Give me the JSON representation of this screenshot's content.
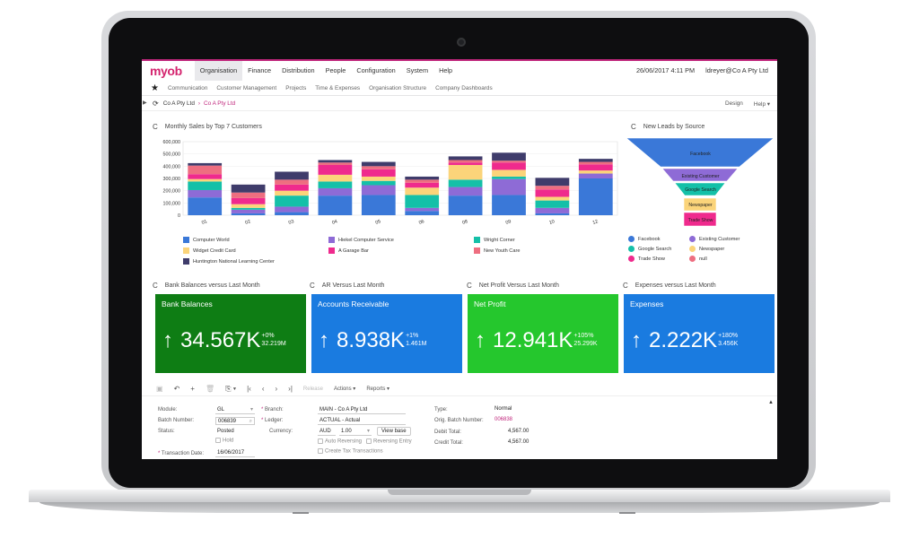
{
  "app": {
    "logo": "myob",
    "menu": [
      "Organisation",
      "Finance",
      "Distribution",
      "People",
      "Configuration",
      "System",
      "Help"
    ],
    "active_menu": "Organisation",
    "datetime": "26/06/2017 4:11 PM",
    "user": "ldreyer@Co A Pty Ltd"
  },
  "subnav": [
    "Communication",
    "Customer Management",
    "Projects",
    "Time & Expenses",
    "Organisation Structure",
    "Company Dashboards"
  ],
  "breadcrumb": {
    "root": "Co A Pty Ltd",
    "current": "Co A Pty Ltd"
  },
  "crumb_right": {
    "design": "Design",
    "help": "Help"
  },
  "widgets": {
    "monthly_sales": "Monthly Sales by Top 7 Customers",
    "leads": "New Leads by Source",
    "bank": "Bank Balances versus Last Month",
    "ar": "AR Versus Last Month",
    "profit": "Net Profit Versus Last Month",
    "expenses": "Expenses versus Last Month"
  },
  "chart_data": [
    {
      "type": "bar",
      "stacked": true,
      "title": "Monthly Sales by Top 7 Customers",
      "categories": [
        "01",
        "02",
        "03",
        "04",
        "05",
        "06",
        "08",
        "09",
        "10",
        "12"
      ],
      "ylim": [
        0,
        600000
      ],
      "yticks": [
        "0",
        "100,000",
        "200,000",
        "300,000",
        "400,000",
        "500,000",
        "600,000"
      ],
      "legend_position": "bottom",
      "series": [
        {
          "name": "Computer World",
          "color": "#3a78d8",
          "values": [
            145000,
            15000,
            25000,
            160000,
            165000,
            35000,
            160000,
            165000,
            15000,
            300000
          ]
        },
        {
          "name": "Hiekel Computer Service",
          "color": "#8e6bd6",
          "values": [
            60000,
            30000,
            45000,
            60000,
            80000,
            25000,
            70000,
            130000,
            45000,
            40000
          ]
        },
        {
          "name": "Wright Corner",
          "color": "#14c0a8",
          "values": [
            70000,
            15000,
            90000,
            55000,
            35000,
            105000,
            60000,
            20000,
            60000,
            0
          ]
        },
        {
          "name": "Widget Credit Card",
          "color": "#fbd47a",
          "values": [
            20000,
            30000,
            40000,
            55000,
            35000,
            60000,
            120000,
            55000,
            30000,
            25000
          ]
        },
        {
          "name": "A Garage Bar",
          "color": "#ef2a8d",
          "values": [
            40000,
            50000,
            50000,
            80000,
            60000,
            40000,
            20000,
            60000,
            60000,
            50000
          ]
        },
        {
          "name": "New Youth Care",
          "color": "#ee6e80",
          "values": [
            70000,
            45000,
            40000,
            20000,
            25000,
            25000,
            20000,
            15000,
            30000,
            20000
          ]
        },
        {
          "name": "Huntington National Learning Center",
          "color": "#3f3c6b",
          "values": [
            20000,
            65000,
            65000,
            20000,
            35000,
            25000,
            30000,
            65000,
            65000,
            25000
          ]
        }
      ]
    },
    {
      "type": "funnel",
      "title": "New Leads by Source",
      "categories": [
        "Facebook",
        "Existing Customer",
        "Google Search",
        "Newspaper",
        "Trade Show"
      ],
      "colors": [
        "#3a78d8",
        "#8e6bd6",
        "#14c0a8",
        "#fbd47a",
        "#ef2a8d"
      ],
      "legend": [
        {
          "name": "Facebook",
          "color": "#3a78d8"
        },
        {
          "name": "Existing Customer",
          "color": "#8e6bd6"
        },
        {
          "name": "Google Search",
          "color": "#14c0a8"
        },
        {
          "name": "Newspaper",
          "color": "#fbd47a"
        },
        {
          "name": "Trade Show",
          "color": "#ef2a8d"
        },
        {
          "name": "null",
          "color": "#ee6e80"
        }
      ]
    }
  ],
  "kpis": [
    {
      "title": "Bank Balances",
      "value": "34.567K",
      "change": "+0%",
      "previous": "32.219M",
      "color": "#0e7d14"
    },
    {
      "title": "Accounts Receivable",
      "value": "8.938K",
      "change": "+1%",
      "previous": "1.461M",
      "color": "#1a7be0"
    },
    {
      "title": "Net Profit",
      "value": "12.941K",
      "change": "+105%",
      "previous": "25.299K",
      "color": "#25c72d"
    },
    {
      "title": "Expenses",
      "value": "2.222K",
      "change": "+180%",
      "previous": "3.456K",
      "color": "#1a7be0"
    }
  ],
  "toolbar": {
    "release": "Release",
    "actions": "Actions",
    "reports": "Reports"
  },
  "form": {
    "module_label": "Module:",
    "module": "GL",
    "batch_label": "Batch Number:",
    "batch": "006839",
    "status_label": "Status:",
    "status": "Posted",
    "hold": "Hold",
    "tdate_label": "Transaction Date:",
    "tdate": "16/06/2017",
    "branch_label": "Branch:",
    "branch": "MAIN - Co A Pty Ltd",
    "ledger_label": "Ledger:",
    "ledger": "ACTUAL - Actual",
    "currency_label": "Currency:",
    "currency": "AUD",
    "rate": "1.00",
    "view_base": "View base",
    "auto_rev": "Auto Reversing",
    "rev_entry": "Reversing Entry",
    "tax": "Create Tax Transactions",
    "type_label": "Type:",
    "type": "Normal",
    "orig_label": "Orig. Batch Number:",
    "orig": "006838",
    "debit_label": "Debit Total:",
    "debit": "4,567.00",
    "credit_label": "Credit Total:",
    "credit": "4,567.00"
  }
}
